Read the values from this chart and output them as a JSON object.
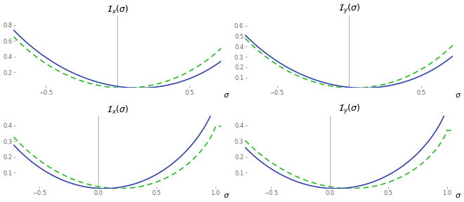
{
  "blue_color": "#3344aa",
  "green_color": "#22bb22",
  "background": "#ffffff",
  "axis_color": "#aaaaaa",
  "tick_color": "#666666",
  "linewidth": 1.2,
  "subplots": [
    {
      "title": "$\\mathcal{I}_x(\\sigma)$",
      "xlim": [
        -0.72,
        0.72
      ],
      "ylim": [
        0.0,
        0.92
      ],
      "xticks": [
        -0.5,
        0.5
      ],
      "yticks": [
        0.2,
        0.4,
        0.6,
        0.8
      ],
      "row": 0,
      "col": 0,
      "curve_type": "top_x"
    },
    {
      "title": "$\\mathcal{I}_y(\\sigma)$",
      "xlim": [
        -0.72,
        0.72
      ],
      "ylim": [
        0.0,
        0.7
      ],
      "xticks": [
        -0.5,
        0.5
      ],
      "yticks": [
        0.1,
        0.2,
        0.3,
        0.4,
        0.5,
        0.6
      ],
      "row": 0,
      "col": 1,
      "curve_type": "top_y"
    },
    {
      "title": "$\\mathcal{I}_x(\\sigma)$",
      "xlim": [
        -0.72,
        1.05
      ],
      "ylim": [
        0.0,
        0.46
      ],
      "xticks": [
        -0.5,
        0.0,
        0.5,
        1.0
      ],
      "yticks": [
        0.1,
        0.2,
        0.3,
        0.4
      ],
      "row": 1,
      "col": 0,
      "curve_type": "bot_x"
    },
    {
      "title": "$\\mathcal{I}_y(\\sigma)$",
      "xlim": [
        -0.72,
        1.05
      ],
      "ylim": [
        0.0,
        0.46
      ],
      "xticks": [
        -0.5,
        0.0,
        0.5,
        1.0
      ],
      "yticks": [
        0.1,
        0.2,
        0.3,
        0.4
      ],
      "row": 1,
      "col": 1,
      "curve_type": "bot_y"
    }
  ]
}
